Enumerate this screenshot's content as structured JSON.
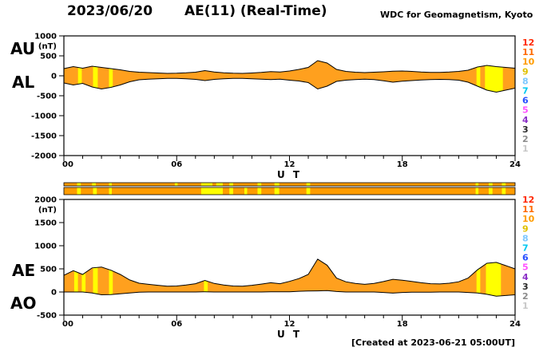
{
  "header": {
    "date": "2023/06/20",
    "title": "AE(11) (Real-Time)",
    "source": "WDC for Geomagnetism, Kyoto"
  },
  "footer": {
    "created": "[Created at 2023-06-21 05:00UT]"
  },
  "legend": {
    "levels": [
      {
        "label": "12",
        "color": "#ff2800"
      },
      {
        "label": "11",
        "color": "#ff6a00"
      },
      {
        "label": "10",
        "color": "#ff9c00"
      },
      {
        "label": "9",
        "color": "#e0c000"
      },
      {
        "label": "8",
        "color": "#7ec8ff"
      },
      {
        "label": "7",
        "color": "#00c8f0"
      },
      {
        "label": "6",
        "color": "#2850ff"
      },
      {
        "label": "5",
        "color": "#ff50ff"
      },
      {
        "label": "4",
        "color": "#8c32c8"
      },
      {
        "label": "3",
        "color": "#282828"
      },
      {
        "label": "2",
        "color": "#8c8c8c"
      },
      {
        "label": "1",
        "color": "#c8c8c8"
      }
    ]
  },
  "station_bar": {
    "base_color": "#ff9c00",
    "segment_color": "#ffff00",
    "rows": [
      {
        "segments": [
          [
            0.7,
            0.9
          ],
          [
            1.5,
            1.7
          ],
          [
            2.4,
            2.55
          ],
          [
            5.9,
            6.05
          ],
          [
            7.3,
            7.9
          ],
          [
            8.1,
            8.45
          ],
          [
            8.8,
            9.0
          ],
          [
            10.3,
            10.5
          ],
          [
            11.2,
            11.45
          ],
          [
            12.9,
            13.1
          ],
          [
            21.9,
            22.05
          ],
          [
            22.6,
            22.8
          ],
          [
            23.3,
            23.5
          ]
        ]
      },
      {
        "segments": [
          [
            0.7,
            0.9
          ],
          [
            1.55,
            1.75
          ],
          [
            2.4,
            2.55
          ],
          [
            7.3,
            8.45
          ],
          [
            8.8,
            9.0
          ],
          [
            9.6,
            9.75
          ],
          [
            10.3,
            10.5
          ],
          [
            11.2,
            11.45
          ],
          [
            12.9,
            13.1
          ],
          [
            21.9,
            22.05
          ],
          [
            22.6,
            22.8
          ],
          [
            23.3,
            23.5
          ]
        ]
      }
    ]
  },
  "chart_data": [
    {
      "type": "area",
      "title": "AU / AL auroral electrojet indices",
      "xlabel": "U T",
      "ylabel": "(nT)",
      "ylim": [
        -2000,
        1000
      ],
      "yticks": [
        1000,
        500,
        0,
        -500,
        -1000,
        -1500,
        -2000
      ],
      "xticks": [
        0,
        6,
        12,
        18,
        24
      ],
      "x_tick_labels": [
        "00",
        "06",
        "12",
        "18",
        "24"
      ],
      "fill_color": "#ffa01e",
      "stripe_color": "#ffff00",
      "stripes": [
        [
          0.75,
          0.95
        ],
        [
          1.55,
          1.8
        ],
        [
          2.4,
          2.6
        ],
        [
          21.95,
          22.15
        ],
        [
          22.4,
          23.35
        ]
      ],
      "x": [
        0,
        0.5,
        1,
        1.5,
        2,
        2.5,
        3,
        3.5,
        4,
        4.5,
        5,
        5.5,
        6,
        6.5,
        7,
        7.5,
        8,
        8.5,
        9,
        9.5,
        10,
        10.5,
        11,
        11.5,
        12,
        12.5,
        13,
        13.5,
        14,
        14.5,
        15,
        15.5,
        16,
        16.5,
        17,
        17.5,
        18,
        18.5,
        19,
        19.5,
        20,
        20.5,
        21,
        21.5,
        22,
        22.5,
        23,
        23.5,
        24
      ],
      "series": [
        {
          "name": "AU",
          "values": [
            180,
            230,
            190,
            240,
            210,
            180,
            150,
            110,
            90,
            80,
            70,
            60,
            65,
            75,
            90,
            130,
            95,
            75,
            65,
            60,
            70,
            85,
            105,
            95,
            120,
            160,
            210,
            380,
            320,
            160,
            110,
            90,
            80,
            90,
            100,
            115,
            120,
            110,
            95,
            85,
            85,
            95,
            110,
            140,
            220,
            260,
            230,
            210,
            190
          ]
        },
        {
          "name": "AL",
          "values": [
            -180,
            -230,
            -190,
            -280,
            -330,
            -290,
            -230,
            -150,
            -100,
            -85,
            -75,
            -65,
            -65,
            -75,
            -90,
            -120,
            -90,
            -75,
            -65,
            -65,
            -75,
            -85,
            -95,
            -85,
            -110,
            -130,
            -170,
            -330,
            -260,
            -140,
            -110,
            -95,
            -85,
            -95,
            -125,
            -160,
            -135,
            -120,
            -105,
            -95,
            -90,
            -95,
            -110,
            -160,
            -260,
            -360,
            -410,
            -360,
            -310
          ]
        }
      ]
    },
    {
      "type": "area",
      "title": "AE / AO auroral electrojet indices",
      "xlabel": "U T",
      "ylabel": "(nT)",
      "ylim": [
        -500,
        2000
      ],
      "yticks": [
        2000,
        1500,
        1000,
        500,
        0,
        -500
      ],
      "xticks": [
        0,
        6,
        12,
        18,
        24
      ],
      "x_tick_labels": [
        "00",
        "06",
        "12",
        "18",
        "24"
      ],
      "fill_color": "#ffa01e",
      "stripe_color": "#ffff00",
      "stripes": [
        [
          0.55,
          0.75
        ],
        [
          0.95,
          1.15
        ],
        [
          1.55,
          1.8
        ],
        [
          2.4,
          2.6
        ],
        [
          7.45,
          7.65
        ],
        [
          21.95,
          22.15
        ],
        [
          22.45,
          23.25
        ]
      ],
      "x": [
        0,
        0.5,
        1,
        1.5,
        2,
        2.5,
        3,
        3.5,
        4,
        4.5,
        5,
        5.5,
        6,
        6.5,
        7,
        7.5,
        8,
        8.5,
        9,
        9.5,
        10,
        10.5,
        11,
        11.5,
        12,
        12.5,
        13,
        13.5,
        14,
        14.5,
        15,
        15.5,
        16,
        16.5,
        17,
        17.5,
        18,
        18.5,
        19,
        19.5,
        20,
        20.5,
        21,
        21.5,
        22,
        22.5,
        23,
        23.5,
        24
      ],
      "series": [
        {
          "name": "AE",
          "values": [
            360,
            460,
            380,
            520,
            540,
            470,
            380,
            260,
            190,
            165,
            145,
            125,
            130,
            150,
            180,
            250,
            185,
            150,
            130,
            125,
            145,
            170,
            200,
            180,
            230,
            290,
            380,
            710,
            580,
            300,
            220,
            185,
            165,
            185,
            225,
            275,
            255,
            230,
            200,
            180,
            175,
            190,
            220,
            300,
            480,
            620,
            640,
            570,
            500
          ]
        },
        {
          "name": "AO",
          "values": [
            0,
            0,
            0,
            -20,
            -60,
            -55,
            -40,
            -20,
            -5,
            0,
            0,
            0,
            0,
            0,
            0,
            5,
            0,
            0,
            0,
            0,
            0,
            0,
            5,
            5,
            5,
            15,
            20,
            25,
            30,
            10,
            0,
            0,
            0,
            0,
            -10,
            -25,
            -10,
            -5,
            -5,
            -5,
            0,
            0,
            0,
            -10,
            -20,
            -50,
            -90,
            -75,
            -60
          ]
        }
      ]
    }
  ]
}
